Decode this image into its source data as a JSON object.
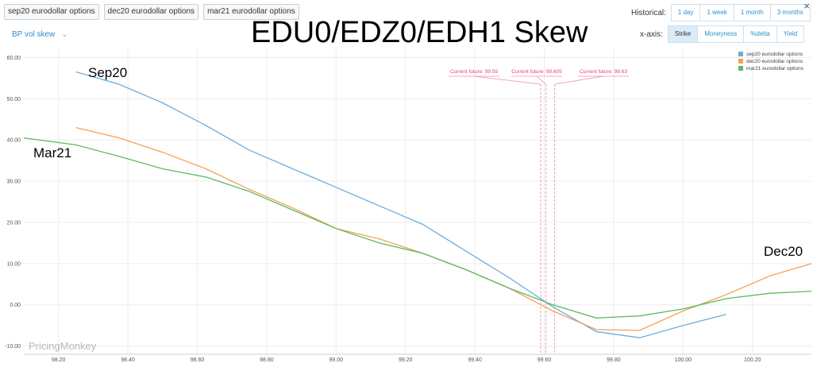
{
  "top_tags": [
    "sep20 eurodollar options",
    "dec20 eurodollar options",
    "mar21 eurodollar options"
  ],
  "view_select": {
    "label": "BP vol skew"
  },
  "overlay_title": "EDU0/EDZ0/EDH1 Skew",
  "historical": {
    "label": "Historical:",
    "options": [
      "1 day",
      "1 week",
      "1 month",
      "3 months"
    ]
  },
  "xaxis_mode": {
    "label": "x-axis:",
    "options": [
      "Strike",
      "Moneyness",
      "%delta",
      "Yield"
    ],
    "active": "Strike"
  },
  "close_label": "×",
  "watermark": "PricingMonkey",
  "chart_data": {
    "type": "line",
    "xlim": [
      98.1,
      100.37
    ],
    "ylim": [
      -12,
      62
    ],
    "x_ticks": [
      "98.20",
      "98.40",
      "98.60",
      "98.80",
      "99.00",
      "99.20",
      "99.40",
      "99.60",
      "99.80",
      "100.00",
      "100.20"
    ],
    "y_ticks": [
      "-10.00",
      "0.00",
      "10.00",
      "20.00",
      "30.00",
      "40.00",
      "50.00",
      "60.00"
    ],
    "grid": true,
    "legend_position": "top-right",
    "series": [
      {
        "name": "sep20 eurodollar options",
        "color": "#6aaedc",
        "label": "Sep20",
        "points": [
          [
            98.25,
            56.5
          ],
          [
            98.375,
            53.5
          ],
          [
            98.5,
            49
          ],
          [
            98.625,
            43.5
          ],
          [
            98.75,
            37.5
          ],
          [
            98.875,
            33
          ],
          [
            99.0,
            28.5
          ],
          [
            99.125,
            24
          ],
          [
            99.25,
            19.5
          ],
          [
            99.375,
            13
          ],
          [
            99.5,
            6.5
          ],
          [
            99.625,
            -0.5
          ],
          [
            99.75,
            -6.5
          ],
          [
            99.875,
            -8
          ],
          [
            100.0,
            -5
          ],
          [
            100.125,
            -2.3
          ]
        ]
      },
      {
        "name": "dec20 eurodollar options",
        "color": "#f5a05a",
        "label": "Dec20",
        "points": [
          [
            98.25,
            43
          ],
          [
            98.375,
            40.5
          ],
          [
            98.5,
            37
          ],
          [
            98.625,
            33
          ],
          [
            98.75,
            28
          ],
          [
            98.875,
            23.5
          ],
          [
            99.0,
            18.5
          ],
          [
            99.125,
            16
          ],
          [
            99.25,
            12.5
          ],
          [
            99.375,
            8.5
          ],
          [
            99.5,
            4
          ],
          [
            99.625,
            -1.5
          ],
          [
            99.75,
            -6
          ],
          [
            99.875,
            -6.2
          ],
          [
            100.0,
            -1.5
          ],
          [
            100.125,
            2.5
          ],
          [
            100.25,
            7
          ],
          [
            100.37,
            10
          ]
        ]
      },
      {
        "name": "mar21 eurodollar options",
        "color": "#5dba5d",
        "label": "Mar21",
        "points": [
          [
            98.1,
            40.5
          ],
          [
            98.25,
            38.8
          ],
          [
            98.375,
            36
          ],
          [
            98.5,
            33
          ],
          [
            98.625,
            31
          ],
          [
            98.75,
            27.5
          ],
          [
            98.875,
            23
          ],
          [
            99.0,
            18.5
          ],
          [
            99.125,
            15
          ],
          [
            99.25,
            12.5
          ],
          [
            99.375,
            8.5
          ],
          [
            99.5,
            4
          ],
          [
            99.625,
            0
          ],
          [
            99.75,
            -3.2
          ],
          [
            99.875,
            -2.7
          ],
          [
            100.0,
            -1
          ],
          [
            100.125,
            1.5
          ],
          [
            100.25,
            2.8
          ],
          [
            100.37,
            3.3
          ]
        ]
      }
    ],
    "annotations": [
      {
        "label": "Current future: 99.59",
        "x": 99.59
      },
      {
        "label": "Current future: 99.605",
        "x": 99.605
      },
      {
        "label": "Current future: 99.63",
        "x": 99.63
      }
    ]
  }
}
